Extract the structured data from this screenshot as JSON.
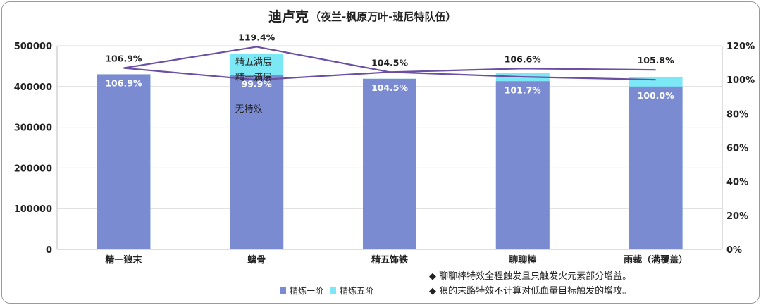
{
  "chart_data": {
    "type": "bar",
    "title": "迪卢克",
    "subtitle": "（夜兰-枫原万叶-班尼特队伍）",
    "categories": [
      "精一狼末",
      "螭骨",
      "精五饰铁",
      "聊聊棒",
      "雨裁（满覆盖）"
    ],
    "series": [
      {
        "name": "精炼一阶",
        "values": [
          430000,
          428000,
          419000,
          413000,
          400000
        ],
        "color": "#7b8bd1"
      },
      {
        "name": "精炼五阶",
        "values": [
          430000,
          480000,
          419000,
          433000,
          424000
        ],
        "color": "#7de8f5"
      }
    ],
    "secondary_series": [
      {
        "values_percent": [
          106.9,
          119.4,
          104.5,
          106.6,
          105.8
        ],
        "labels": [
          "106.9%",
          "119.4%",
          "104.5%",
          "106.6%",
          "105.8%"
        ]
      },
      {
        "values_percent": [
          106.9,
          99.9,
          104.5,
          101.7,
          100.0
        ],
        "labels": [
          "106.9%",
          "99.9%",
          "104.5%",
          "101.7%",
          "100.0%"
        ]
      }
    ],
    "line_color": "#6a4fa3",
    "y_left": {
      "ylim": [
        0,
        500000
      ],
      "ticks": [
        "0",
        "100000",
        "200000",
        "300000",
        "400000",
        "500000"
      ]
    },
    "y_right": {
      "ylim": [
        0,
        120
      ],
      "ticks": [
        "0%",
        "20%",
        "40%",
        "60%",
        "80%",
        "100%",
        "120%"
      ]
    },
    "annotations": [
      "精五满层",
      "精一满层",
      "无特效"
    ],
    "legend_position": "bottom-left",
    "notes": [
      "◆ 聊聊棒特效全程触发且只触发火元素部分增益。",
      "◆ 狼的末路特效不计算对低血量目标触发的增攻。"
    ],
    "grid": true
  }
}
